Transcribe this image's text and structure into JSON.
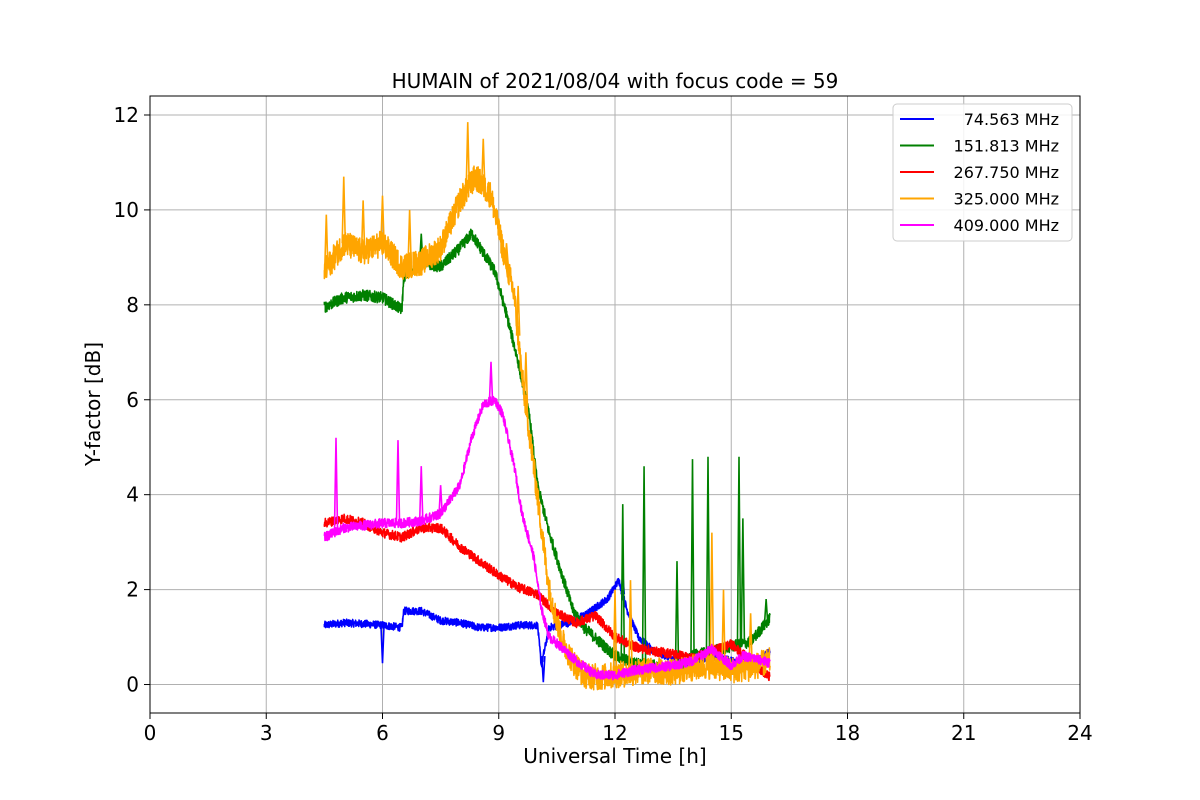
{
  "chart_data": {
    "type": "line",
    "title": "HUMAIN of 2021/08/04 with focus code = 59",
    "xlabel": "Universal Time [h]",
    "ylabel": "Y-factor [dB]",
    "xlim": [
      0,
      24
    ],
    "ylim": [
      -0.6,
      12.4
    ],
    "xticks": [
      0,
      3,
      6,
      9,
      12,
      15,
      18,
      21,
      24
    ],
    "yticks": [
      0,
      2,
      4,
      6,
      8,
      10,
      12
    ],
    "grid": true,
    "legend_position": "top-right",
    "series": [
      {
        "name": "74.563 MHz",
        "color": "#0000ff",
        "noise": 0.08,
        "points": [
          [
            4.5,
            1.25
          ],
          [
            5.0,
            1.3
          ],
          [
            5.5,
            1.28
          ],
          [
            6.0,
            1.25
          ],
          [
            6.5,
            1.2
          ],
          [
            6.55,
            1.55
          ],
          [
            7.0,
            1.55
          ],
          [
            7.5,
            1.35
          ],
          [
            8.0,
            1.3
          ],
          [
            8.5,
            1.2
          ],
          [
            9.0,
            1.2
          ],
          [
            9.5,
            1.25
          ],
          [
            10.0,
            1.25
          ],
          [
            10.1,
            0.4
          ],
          [
            10.3,
            1.2
          ],
          [
            10.8,
            1.3
          ],
          [
            11.3,
            1.5
          ],
          [
            11.8,
            1.8
          ],
          [
            12.1,
            2.2
          ],
          [
            12.3,
            1.6
          ],
          [
            12.6,
            1.0
          ],
          [
            13.0,
            0.7
          ],
          [
            13.5,
            0.55
          ],
          [
            14.0,
            0.45
          ],
          [
            14.5,
            0.6
          ],
          [
            15.0,
            0.5
          ],
          [
            15.5,
            0.4
          ],
          [
            16.0,
            0.7
          ]
        ],
        "spikes": [
          [
            6.0,
            0.45
          ],
          [
            10.15,
            0.05
          ],
          [
            12.2,
            2.35
          ]
        ]
      },
      {
        "name": "151.813 MHz",
        "color": "#008000",
        "noise": 0.12,
        "points": [
          [
            4.5,
            7.95
          ],
          [
            5.0,
            8.15
          ],
          [
            5.5,
            8.2
          ],
          [
            6.0,
            8.15
          ],
          [
            6.5,
            7.9
          ],
          [
            6.55,
            8.6
          ],
          [
            7.0,
            8.9
          ],
          [
            7.5,
            8.8
          ],
          [
            8.0,
            9.2
          ],
          [
            8.3,
            9.5
          ],
          [
            8.6,
            9.1
          ],
          [
            8.9,
            8.7
          ],
          [
            9.2,
            7.8
          ],
          [
            9.5,
            6.8
          ],
          [
            9.8,
            5.6
          ],
          [
            10.0,
            4.2
          ],
          [
            10.3,
            3.2
          ],
          [
            10.6,
            2.4
          ],
          [
            10.9,
            1.6
          ],
          [
            11.2,
            1.2
          ],
          [
            11.6,
            0.9
          ],
          [
            12.0,
            0.6
          ],
          [
            12.5,
            0.45
          ],
          [
            13.0,
            0.4
          ],
          [
            13.5,
            0.25
          ],
          [
            14.0,
            0.6
          ],
          [
            14.5,
            0.7
          ],
          [
            15.0,
            0.8
          ],
          [
            15.5,
            0.9
          ],
          [
            16.0,
            1.4
          ]
        ],
        "spikes": [
          [
            12.2,
            3.8
          ],
          [
            12.75,
            4.6
          ],
          [
            13.6,
            2.6
          ],
          [
            14.0,
            4.75
          ],
          [
            14.4,
            4.8
          ],
          [
            15.2,
            4.8
          ],
          [
            15.3,
            3.5
          ],
          [
            15.9,
            1.8
          ],
          [
            7.0,
            9.5
          ]
        ]
      },
      {
        "name": "267.750 MHz",
        "color": "#ff0000",
        "noise": 0.1,
        "points": [
          [
            4.5,
            3.4
          ],
          [
            5.0,
            3.5
          ],
          [
            5.5,
            3.4
          ],
          [
            6.0,
            3.2
          ],
          [
            6.5,
            3.1
          ],
          [
            7.0,
            3.3
          ],
          [
            7.5,
            3.3
          ],
          [
            8.0,
            2.9
          ],
          [
            8.5,
            2.6
          ],
          [
            9.0,
            2.3
          ],
          [
            9.5,
            2.05
          ],
          [
            10.0,
            1.9
          ],
          [
            10.5,
            1.5
          ],
          [
            11.0,
            1.3
          ],
          [
            11.5,
            1.45
          ],
          [
            12.0,
            1.0
          ],
          [
            12.5,
            0.8
          ],
          [
            13.0,
            0.7
          ],
          [
            13.5,
            0.65
          ],
          [
            14.0,
            0.55
          ],
          [
            14.5,
            0.7
          ],
          [
            15.0,
            0.85
          ],
          [
            15.5,
            0.5
          ],
          [
            16.0,
            0.15
          ]
        ],
        "spikes": []
      },
      {
        "name": "325.000 MHz",
        "color": "#ffa500",
        "noise": 0.28,
        "points": [
          [
            4.5,
            8.7
          ],
          [
            5.0,
            9.3
          ],
          [
            5.5,
            9.1
          ],
          [
            6.0,
            9.3
          ],
          [
            6.5,
            8.8
          ],
          [
            7.0,
            8.9
          ],
          [
            7.5,
            9.2
          ],
          [
            8.0,
            10.2
          ],
          [
            8.4,
            10.7
          ],
          [
            8.8,
            10.3
          ],
          [
            9.1,
            9.2
          ],
          [
            9.4,
            8.2
          ],
          [
            9.6,
            6.5
          ],
          [
            9.9,
            4.6
          ],
          [
            10.1,
            3.3
          ],
          [
            10.3,
            2.0
          ],
          [
            10.6,
            1.0
          ],
          [
            10.9,
            0.5
          ],
          [
            11.2,
            0.2
          ],
          [
            11.6,
            0.15
          ],
          [
            12.0,
            0.2
          ],
          [
            12.5,
            0.25
          ],
          [
            13.0,
            0.3
          ],
          [
            13.5,
            0.25
          ],
          [
            14.0,
            0.35
          ],
          [
            14.5,
            0.4
          ],
          [
            15.0,
            0.3
          ],
          [
            15.5,
            0.35
          ],
          [
            16.0,
            0.5
          ]
        ],
        "spikes": [
          [
            4.55,
            9.9
          ],
          [
            5.0,
            10.7
          ],
          [
            5.5,
            10.2
          ],
          [
            6.0,
            10.3
          ],
          [
            6.7,
            10.0
          ],
          [
            8.2,
            11.85
          ],
          [
            8.6,
            11.5
          ],
          [
            9.2,
            9.3
          ],
          [
            9.5,
            8.4
          ],
          [
            9.7,
            7.0
          ],
          [
            12.0,
            2.0
          ],
          [
            12.4,
            2.2
          ],
          [
            14.5,
            3.2
          ],
          [
            14.8,
            2.0
          ],
          [
            15.5,
            1.5
          ]
        ]
      },
      {
        "name": "409.000 MHz",
        "color": "#ff00ff",
        "noise": 0.1,
        "points": [
          [
            4.5,
            3.1
          ],
          [
            5.0,
            3.3
          ],
          [
            5.5,
            3.35
          ],
          [
            6.0,
            3.4
          ],
          [
            6.5,
            3.4
          ],
          [
            7.0,
            3.45
          ],
          [
            7.5,
            3.6
          ],
          [
            8.0,
            4.2
          ],
          [
            8.3,
            5.2
          ],
          [
            8.6,
            5.9
          ],
          [
            8.9,
            6.0
          ],
          [
            9.1,
            5.7
          ],
          [
            9.4,
            4.6
          ],
          [
            9.6,
            3.6
          ],
          [
            9.9,
            2.7
          ],
          [
            10.1,
            1.6
          ],
          [
            10.3,
            1.0
          ],
          [
            10.6,
            0.8
          ],
          [
            11.0,
            0.5
          ],
          [
            11.5,
            0.2
          ],
          [
            12.0,
            0.2
          ],
          [
            12.5,
            0.3
          ],
          [
            13.0,
            0.35
          ],
          [
            13.5,
            0.4
          ],
          [
            14.0,
            0.5
          ],
          [
            14.5,
            0.75
          ],
          [
            15.0,
            0.4
          ],
          [
            15.3,
            0.6
          ],
          [
            15.6,
            0.55
          ],
          [
            16.0,
            0.45
          ]
        ],
        "spikes": [
          [
            4.8,
            5.2
          ],
          [
            6.4,
            5.15
          ],
          [
            7.0,
            4.6
          ],
          [
            7.5,
            4.2
          ],
          [
            8.8,
            6.8
          ]
        ]
      }
    ]
  }
}
